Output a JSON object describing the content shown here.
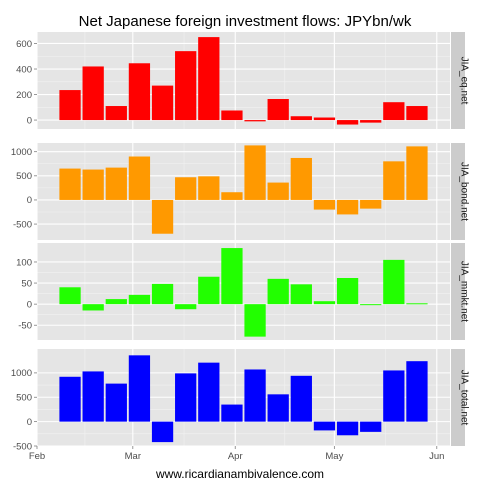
{
  "chart_data": {
    "type": "bar",
    "title": "Net Japanese foreign investment flows: JPYbn/wk",
    "footer": "www.ricardianambivalence.com",
    "x_ticks": [
      "Feb",
      "Mar",
      "Apr",
      "May",
      "Jun"
    ],
    "x_range": [
      "2012-02-01",
      "2012-06-05"
    ],
    "weeks": [
      "2012-02-11",
      "2012-02-18",
      "2012-02-25",
      "2012-03-03",
      "2012-03-10",
      "2012-03-17",
      "2012-03-24",
      "2012-03-31",
      "2012-04-07",
      "2012-04-14",
      "2012-04-21",
      "2012-04-28",
      "2012-05-05",
      "2012-05-12",
      "2012-05-19",
      "2012-05-26"
    ],
    "panels": [
      {
        "name": "JIA_eq.net",
        "color": "#ff0000",
        "ylim": [
          -70,
          690
        ],
        "y_ticks": [
          0,
          200,
          400,
          600
        ],
        "values": [
          235,
          420,
          110,
          445,
          270,
          540,
          650,
          75,
          -10,
          165,
          30,
          20,
          -35,
          -20,
          140,
          110
        ]
      },
      {
        "name": "JIA_bond.net",
        "color": "#ff9900",
        "ylim": [
          -830,
          1180
        ],
        "y_ticks": [
          -500,
          0,
          500,
          1000
        ],
        "values": [
          650,
          630,
          670,
          900,
          -700,
          470,
          490,
          160,
          1130,
          360,
          870,
          -200,
          -300,
          -180,
          800,
          1110
        ]
      },
      {
        "name": "JIA_mmkt.net",
        "color": "#22ff00",
        "ylim": [
          -85,
          145
        ],
        "y_ticks": [
          -50,
          0,
          50,
          100
        ],
        "values": [
          40,
          -15,
          12,
          22,
          48,
          -12,
          65,
          133,
          -77,
          60,
          47,
          7,
          62,
          0,
          105,
          2
        ]
      },
      {
        "name": "JIA_total.net",
        "color": "#0000ff",
        "ylim": [
          -500,
          1490
        ],
        "y_ticks": [
          -500,
          0,
          500,
          1000
        ],
        "values": [
          920,
          1030,
          780,
          1360,
          -420,
          990,
          1210,
          350,
          1070,
          560,
          940,
          -180,
          -280,
          -210,
          1050,
          1240
        ]
      }
    ]
  }
}
